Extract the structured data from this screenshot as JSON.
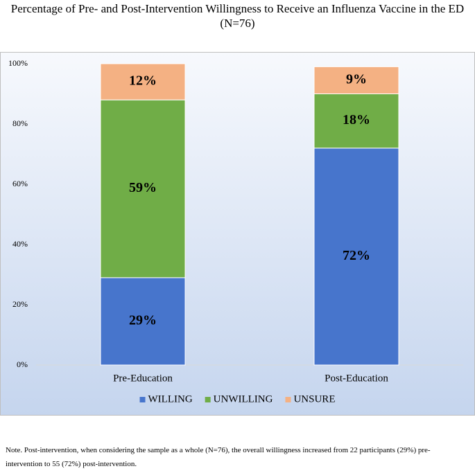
{
  "chart_data": {
    "type": "stacked-bar",
    "title": "Percentage of Pre- and Post-Intervention Willingness to Receive an Influenza Vaccine in the ED (N=76)",
    "categories": [
      "Pre-Education",
      "Post-Education"
    ],
    "series": [
      {
        "name": "WILLING",
        "color": "#4775cc",
        "values": [
          29,
          72
        ],
        "value_labels": [
          "29%",
          "72%"
        ]
      },
      {
        "name": "UNWILLING",
        "color": "#70ad47",
        "values": [
          59,
          18
        ],
        "value_labels": [
          "59%",
          "18%"
        ]
      },
      {
        "name": "UNSURE",
        "color": "#f4b183",
        "values": [
          12,
          9
        ],
        "value_labels": [
          "12%",
          "9%"
        ]
      }
    ],
    "ylim": [
      0,
      100
    ],
    "yticks": [
      {
        "value": 0,
        "label": "0%"
      },
      {
        "value": 20,
        "label": "20%"
      },
      {
        "value": 40,
        "label": "40%"
      },
      {
        "value": 60,
        "label": "60%"
      },
      {
        "value": 80,
        "label": "80%"
      },
      {
        "value": 100,
        "label": "100%"
      }
    ],
    "legend": "bottom",
    "note": "Note. Post-intervention, when considering the sample as a whole (N=76), the overall willingness increased from 22 participants (29%) pre-intervention to 55 (72%) post-intervention."
  }
}
